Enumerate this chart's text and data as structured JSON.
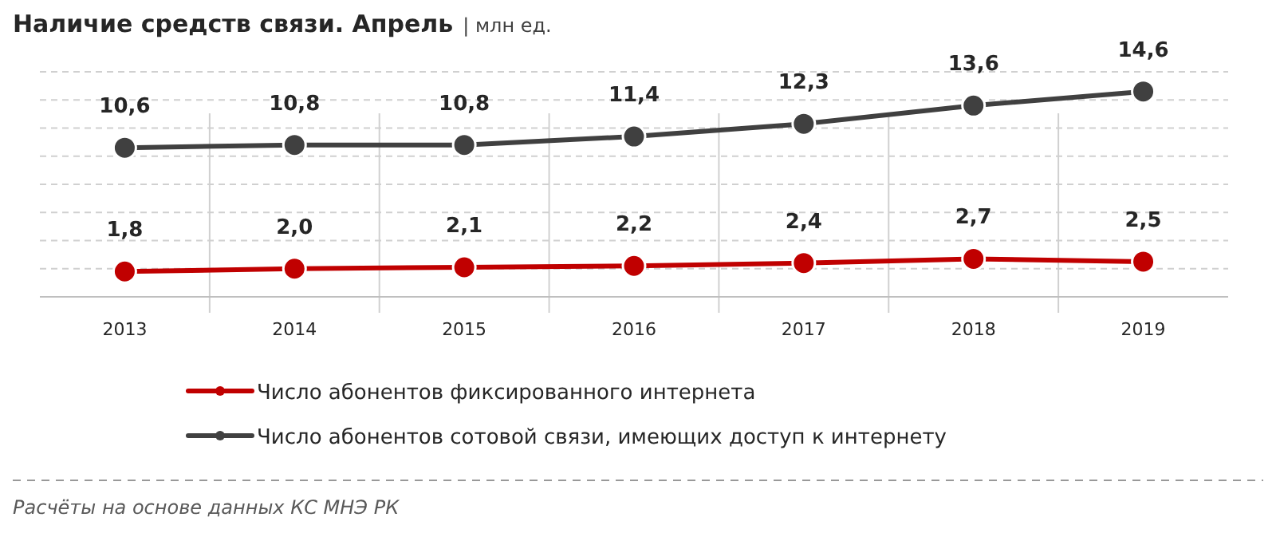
{
  "chart_data": {
    "type": "line",
    "title": "Наличие средств связи. Апрель",
    "subtitle": "| млн ед.",
    "categories": [
      "2013",
      "2014",
      "2015",
      "2016",
      "2017",
      "2018",
      "2019"
    ],
    "series": [
      {
        "name": "Число абонентов фиксированного интернета",
        "color": "#c00000",
        "values": [
          1.8,
          2.0,
          2.1,
          2.2,
          2.4,
          2.7,
          2.5
        ],
        "value_labels": [
          "1,8",
          "2,0",
          "2,1",
          "2,2",
          "2,4",
          "2,7",
          "2,5"
        ]
      },
      {
        "name": "Число абонентов сотовой связи, имеющих доступ к интернету",
        "color": "#404040",
        "values": [
          10.6,
          10.8,
          10.8,
          11.4,
          12.3,
          13.6,
          14.6
        ],
        "value_labels": [
          "10,6",
          "10,8",
          "10,8",
          "11,4",
          "12,3",
          "13,6",
          "14,6"
        ]
      }
    ],
    "tick_labels": "x",
    "grid": "y",
    "legend": "bottom",
    "marker": "circle",
    "line_style": "solid",
    "annotations": [
      "Расчёты на основе данных  КС МНЭ РК"
    ]
  }
}
